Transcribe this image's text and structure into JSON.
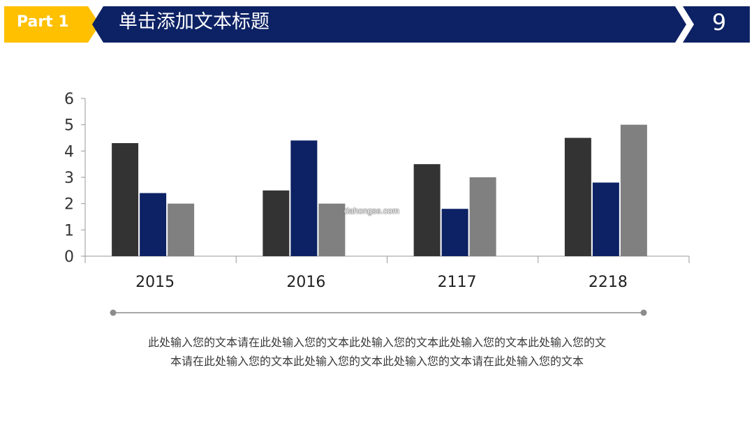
{
  "header": {
    "part_label": "Part 1",
    "title": "单击添加文本标题",
    "page_number": "9",
    "colors": {
      "accent": "#FFC000",
      "navy": "#0D2265"
    }
  },
  "chart_data": {
    "type": "bar",
    "categories": [
      "2015",
      "2016",
      "2117",
      "2218"
    ],
    "series": [
      {
        "values": [
          4.3,
          2.5,
          3.5,
          4.5
        ],
        "color": "#333333"
      },
      {
        "values": [
          2.4,
          4.4,
          1.8,
          2.8
        ],
        "color": "#0D2265"
      },
      {
        "values": [
          2.0,
          2.0,
          3.0,
          5.0
        ],
        "color": "#808080"
      }
    ],
    "ylim": [
      0,
      6
    ],
    "yticks": [
      0,
      1,
      2,
      3,
      4,
      5,
      6
    ],
    "grid": false,
    "legend": "none"
  },
  "caption": {
    "line1": "此处输入您的文本请在此处输入您的文本此处输入您的文本此处输入您的文本此处输入您的文",
    "line2": "本请在此处输入您的文本此处输入您的文本此处输入您的文本请在此处输入您的文本"
  },
  "watermark": "dahongse.com"
}
